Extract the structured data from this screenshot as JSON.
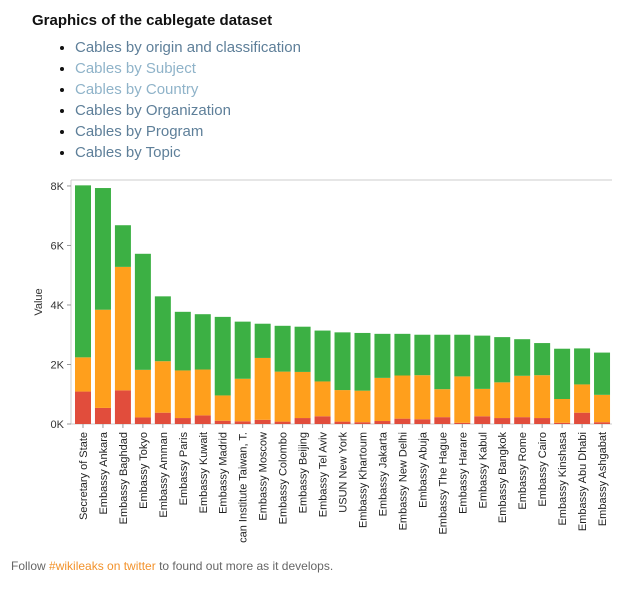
{
  "page": {
    "title": "Graphics of the cablegate dataset"
  },
  "links": [
    {
      "label": "Cables by origin and classification",
      "style": "visited"
    },
    {
      "label": "Cables by Subject",
      "style": "light"
    },
    {
      "label": "Cables by Country",
      "style": "light"
    },
    {
      "label": "Cables by Organization",
      "style": "visited"
    },
    {
      "label": "Cables by Program",
      "style": "visited"
    },
    {
      "label": "Cables by Topic",
      "style": "visited"
    }
  ],
  "footer": {
    "before": "Follow ",
    "link": "#wikileaks on twitter",
    "after": " to found out more as it develops."
  },
  "chart_data": {
    "type": "bar",
    "stacked": true,
    "ylabel": "Value",
    "xlabel": "",
    "ylim": [
      0,
      8200
    ],
    "yticks": [
      0,
      2000,
      4000,
      6000,
      8000
    ],
    "ytick_labels": [
      "0K",
      "2K",
      "4K",
      "6K",
      "8K"
    ],
    "grid": false,
    "legend": "none",
    "categories": [
      "Secretary of State",
      "Embassy Ankara",
      "Embassy Baghdad",
      "Embassy Tokyo",
      "Embassy Amman",
      "Embassy Paris",
      "Embassy Kuwait",
      "Embassy Madrid",
      "can Institute Taiwan, T.",
      "Embassy Moscow",
      "Embassy Colombo",
      "Embassy Beijing",
      "Embassy Tel Aviv",
      "USUN New York",
      "Embassy Khartoum",
      "Embassy Jakarta",
      "Embassy New Delhi",
      "Embassy Abuja",
      "Embassy The Hague",
      "Embassy Harare",
      "Embassy Kabul",
      "Embassy Bangkok",
      "Embassy Rome",
      "Embassy Cairo",
      "Embassy Kinshasa",
      "Embassy Abu Dhabi",
      "Embassy Ashgabat"
    ],
    "series": [
      {
        "color": "#e14d3c",
        "values": [
          1090,
          540,
          1130,
          220,
          380,
          200,
          290,
          110,
          90,
          140,
          80,
          200,
          260,
          80,
          60,
          100,
          180,
          160,
          230,
          40,
          260,
          200,
          230,
          200,
          40,
          380,
          60
        ]
      },
      {
        "color": "#ff9f1c",
        "values": [
          1150,
          3300,
          4150,
          1600,
          1730,
          1600,
          1540,
          850,
          1430,
          2080,
          1680,
          1550,
          1170,
          1060,
          1060,
          1450,
          1450,
          1480,
          940,
          1560,
          920,
          1200,
          1390,
          1440,
          800,
          950,
          920
        ]
      },
      {
        "color": "#3cb044",
        "values": [
          5780,
          4090,
          1400,
          3900,
          2180,
          1970,
          1860,
          2640,
          1920,
          1150,
          1540,
          1520,
          1710,
          1940,
          1940,
          1480,
          1400,
          1360,
          1830,
          1400,
          1790,
          1520,
          1230,
          1080,
          1690,
          1210,
          1420
        ]
      }
    ]
  }
}
